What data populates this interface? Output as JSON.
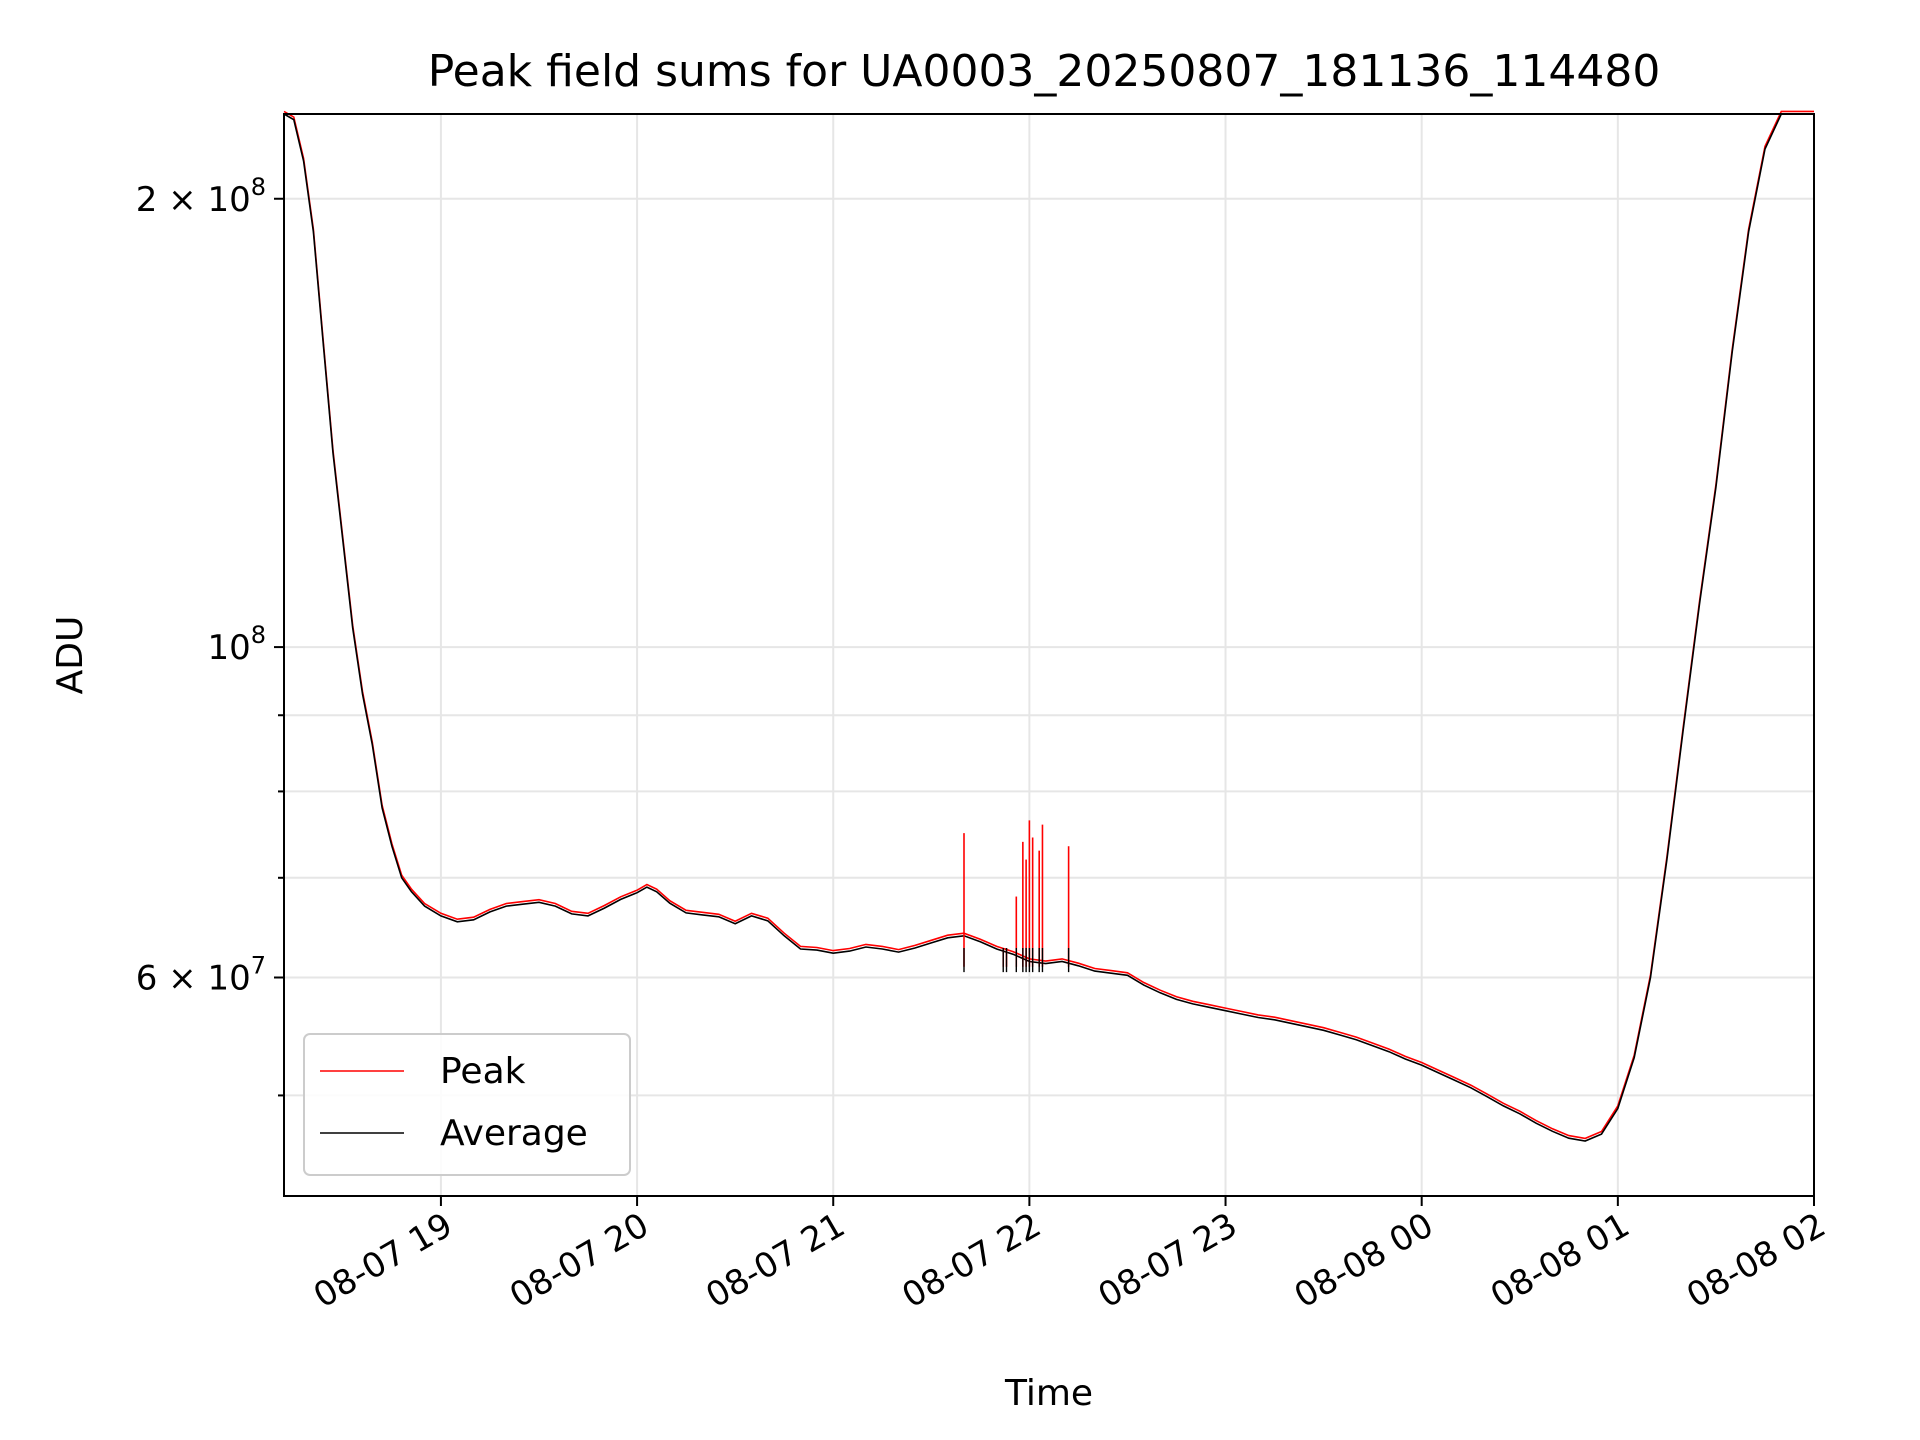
{
  "chart_data": {
    "type": "line",
    "title": "Peak field sums for UA0003_20250807_181136_114480",
    "xlabel": "Time",
    "ylabel": "ADU",
    "yscale": "log",
    "ylim": [
      42800000,
      228000000
    ],
    "xlim": [
      "2025-08-07 18:12",
      "2025-08-08 02:00"
    ],
    "grid": true,
    "legend_position": "lower-left",
    "colors": {
      "Peak": "#ff0000",
      "Average": "#000000"
    },
    "x_ticks": [
      {
        "x": "2025-08-07 19:00",
        "label": "08-07 19"
      },
      {
        "x": "2025-08-07 20:00",
        "label": "08-07 20"
      },
      {
        "x": "2025-08-07 21:00",
        "label": "08-07 21"
      },
      {
        "x": "2025-08-07 22:00",
        "label": "08-07 22"
      },
      {
        "x": "2025-08-07 23:00",
        "label": "08-07 23"
      },
      {
        "x": "2025-08-08 00:00",
        "label": "08-08 00"
      },
      {
        "x": "2025-08-08 01:00",
        "label": "08-08 01"
      },
      {
        "x": "2025-08-08 02:00",
        "label": "08-08 02"
      }
    ],
    "y_ticks_major": [
      {
        "value": 60000000,
        "base": "6 × 10",
        "exp": "7"
      },
      {
        "value": 100000000,
        "base": "10",
        "exp": "8"
      },
      {
        "value": 200000000,
        "base": "2 × 10",
        "exp": "8"
      }
    ],
    "y_ticks_minor": [
      50000000,
      70000000,
      80000000,
      90000000
    ],
    "series": [
      {
        "name": "Average",
        "points": [
          [
            "2025-08-07 18:12",
            228000000
          ],
          [
            "2025-08-07 18:15",
            226000000
          ],
          [
            "2025-08-07 18:18",
            212000000
          ],
          [
            "2025-08-07 18:21",
            190000000
          ],
          [
            "2025-08-07 18:24",
            160000000
          ],
          [
            "2025-08-07 18:27",
            135000000
          ],
          [
            "2025-08-07 18:30",
            118000000
          ],
          [
            "2025-08-07 18:33",
            103000000
          ],
          [
            "2025-08-07 18:36",
            93000000
          ],
          [
            "2025-08-07 18:39",
            86000000
          ],
          [
            "2025-08-07 18:42",
            78000000
          ],
          [
            "2025-08-07 18:45",
            73500000
          ],
          [
            "2025-08-07 18:48",
            70000000
          ],
          [
            "2025-08-07 18:51",
            68500000
          ],
          [
            "2025-08-07 18:55",
            67000000
          ],
          [
            "2025-08-07 19:00",
            66000000
          ],
          [
            "2025-08-07 19:05",
            65400000
          ],
          [
            "2025-08-07 19:10",
            65600000
          ],
          [
            "2025-08-07 19:15",
            66400000
          ],
          [
            "2025-08-07 19:20",
            67000000
          ],
          [
            "2025-08-07 19:25",
            67200000
          ],
          [
            "2025-08-07 19:30",
            67400000
          ],
          [
            "2025-08-07 19:35",
            67000000
          ],
          [
            "2025-08-07 19:40",
            66200000
          ],
          [
            "2025-08-07 19:45",
            66000000
          ],
          [
            "2025-08-07 19:50",
            66800000
          ],
          [
            "2025-08-07 19:55",
            67700000
          ],
          [
            "2025-08-07 20:00",
            68400000
          ],
          [
            "2025-08-07 20:03",
            69000000
          ],
          [
            "2025-08-07 20:06",
            68500000
          ],
          [
            "2025-08-07 20:10",
            67300000
          ],
          [
            "2025-08-07 20:15",
            66300000
          ],
          [
            "2025-08-07 20:20",
            66100000
          ],
          [
            "2025-08-07 20:25",
            65900000
          ],
          [
            "2025-08-07 20:30",
            65200000
          ],
          [
            "2025-08-07 20:35",
            66000000
          ],
          [
            "2025-08-07 20:40",
            65500000
          ],
          [
            "2025-08-07 20:45",
            64000000
          ],
          [
            "2025-08-07 20:50",
            62700000
          ],
          [
            "2025-08-07 20:55",
            62600000
          ],
          [
            "2025-08-07 21:00",
            62300000
          ],
          [
            "2025-08-07 21:05",
            62500000
          ],
          [
            "2025-08-07 21:10",
            62900000
          ],
          [
            "2025-08-07 21:15",
            62700000
          ],
          [
            "2025-08-07 21:20",
            62400000
          ],
          [
            "2025-08-07 21:25",
            62800000
          ],
          [
            "2025-08-07 21:30",
            63300000
          ],
          [
            "2025-08-07 21:35",
            63800000
          ],
          [
            "2025-08-07 21:40",
            64000000
          ],
          [
            "2025-08-07 21:45",
            63400000
          ],
          [
            "2025-08-07 21:50",
            62700000
          ],
          [
            "2025-08-07 21:55",
            62200000
          ],
          [
            "2025-08-07 22:00",
            61500000
          ],
          [
            "2025-08-07 22:05",
            61300000
          ],
          [
            "2025-08-07 22:10",
            61500000
          ],
          [
            "2025-08-07 22:15",
            61100000
          ],
          [
            "2025-08-07 22:20",
            60600000
          ],
          [
            "2025-08-07 22:25",
            60400000
          ],
          [
            "2025-08-07 22:30",
            60200000
          ],
          [
            "2025-08-07 22:35",
            59300000
          ],
          [
            "2025-08-07 22:40",
            58600000
          ],
          [
            "2025-08-07 22:45",
            58000000
          ],
          [
            "2025-08-07 22:50",
            57600000
          ],
          [
            "2025-08-07 22:55",
            57300000
          ],
          [
            "2025-08-07 23:00",
            57000000
          ],
          [
            "2025-08-07 23:05",
            56700000
          ],
          [
            "2025-08-07 23:10",
            56400000
          ],
          [
            "2025-08-07 23:15",
            56200000
          ],
          [
            "2025-08-07 23:20",
            55900000
          ],
          [
            "2025-08-07 23:25",
            55600000
          ],
          [
            "2025-08-07 23:30",
            55300000
          ],
          [
            "2025-08-07 23:35",
            54900000
          ],
          [
            "2025-08-07 23:40",
            54500000
          ],
          [
            "2025-08-07 23:45",
            54000000
          ],
          [
            "2025-08-07 23:50",
            53500000
          ],
          [
            "2025-08-07 23:55",
            52900000
          ],
          [
            "2025-08-08 00:00",
            52400000
          ],
          [
            "2025-08-08 00:05",
            51800000
          ],
          [
            "2025-08-08 00:10",
            51200000
          ],
          [
            "2025-08-08 00:15",
            50600000
          ],
          [
            "2025-08-08 00:20",
            49900000
          ],
          [
            "2025-08-08 00:25",
            49200000
          ],
          [
            "2025-08-08 00:30",
            48600000
          ],
          [
            "2025-08-08 00:35",
            47900000
          ],
          [
            "2025-08-08 00:40",
            47300000
          ],
          [
            "2025-08-08 00:45",
            46800000
          ],
          [
            "2025-08-08 00:50",
            46600000
          ],
          [
            "2025-08-08 00:55",
            47100000
          ],
          [
            "2025-08-08 01:00",
            49000000
          ],
          [
            "2025-08-08 01:05",
            53000000
          ],
          [
            "2025-08-08 01:10",
            60000000
          ],
          [
            "2025-08-08 01:15",
            72000000
          ],
          [
            "2025-08-08 01:20",
            88000000
          ],
          [
            "2025-08-08 01:25",
            107000000
          ],
          [
            "2025-08-08 01:30",
            128000000
          ],
          [
            "2025-08-08 01:35",
            158000000
          ],
          [
            "2025-08-08 01:40",
            190000000
          ],
          [
            "2025-08-08 01:45",
            216000000
          ],
          [
            "2025-08-08 01:50",
            228000000
          ],
          [
            "2025-08-08 02:00",
            228000000
          ]
        ]
      },
      {
        "name": "Peak",
        "spikes": [
          [
            "2025-08-07 21:40",
            75000000
          ],
          [
            "2025-08-07 21:52",
            62800000
          ],
          [
            "2025-08-07 21:53",
            62800000
          ],
          [
            "2025-08-07 21:56",
            68000000
          ],
          [
            "2025-08-07 21:58",
            74000000
          ],
          [
            "2025-08-07 21:59",
            72000000
          ],
          [
            "2025-08-07 22:00",
            76500000
          ],
          [
            "2025-08-07 22:01",
            74500000
          ],
          [
            "2025-08-07 22:03",
            73000000
          ],
          [
            "2025-08-07 22:04",
            76000000
          ],
          [
            "2025-08-07 22:12",
            73500000
          ]
        ]
      }
    ]
  }
}
